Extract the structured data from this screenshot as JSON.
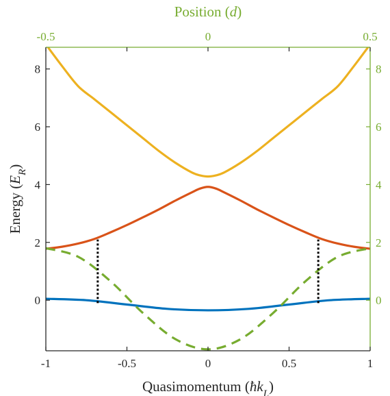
{
  "chart_data": {
    "type": "line",
    "xlabel": {
      "prefix": "Quasimomentum (",
      "math": "ħk",
      "sub": "L",
      "suffix": ")"
    },
    "ylabel": {
      "prefix": "Energy (",
      "math": "E",
      "sub": "R",
      "suffix": ")"
    },
    "x2label": {
      "prefix": "Position (",
      "math": "d",
      "suffix": ")"
    },
    "xlim": [
      -1,
      1
    ],
    "ylim": [
      -1.75,
      8.75
    ],
    "x2lim": [
      -0.5,
      0.5
    ],
    "xticks": [
      -1,
      -0.5,
      0,
      0.5,
      1
    ],
    "xtick_labels": [
      "-1",
      "-0.5",
      "0",
      "0.5",
      "1"
    ],
    "yticks": [
      0,
      2,
      4,
      6,
      8
    ],
    "ytick_labels": [
      "0",
      "2",
      "4",
      "6",
      "8"
    ],
    "x2ticks": [
      -0.5,
      0,
      0.5
    ],
    "x2tick_labels": [
      "-0.5",
      "0",
      "0.5"
    ],
    "y2ticks": [
      0,
      2,
      4,
      6,
      8
    ],
    "y2tick_labels": [
      "0",
      "2",
      "4",
      "6",
      "8"
    ],
    "grid": false,
    "series": [
      {
        "key": "band-0",
        "color": "#0072bd",
        "style": "solid",
        "x": [
          -1,
          -0.75,
          -0.5,
          -0.25,
          0,
          0.25,
          0.5,
          0.75,
          1
        ],
        "y": [
          0.05,
          0.0,
          -0.15,
          -0.3,
          -0.35,
          -0.3,
          -0.15,
          0.0,
          0.05
        ]
      },
      {
        "key": "band-1",
        "color": "#d95319",
        "style": "solid",
        "x": [
          -1,
          -0.9,
          -0.8,
          -0.7,
          -0.6,
          -0.5,
          -0.4,
          -0.3,
          -0.2,
          -0.1,
          -0.05,
          0,
          0.05,
          0.1,
          0.2,
          0.3,
          0.4,
          0.5,
          0.6,
          0.7,
          0.8,
          0.9,
          1
        ],
        "y": [
          1.78,
          1.85,
          1.96,
          2.12,
          2.35,
          2.6,
          2.87,
          3.15,
          3.45,
          3.73,
          3.86,
          3.92,
          3.86,
          3.73,
          3.45,
          3.15,
          2.87,
          2.6,
          2.35,
          2.12,
          1.96,
          1.85,
          1.78
        ]
      },
      {
        "key": "band-2",
        "color": "#edb120",
        "style": "solid",
        "x": [
          -1,
          -0.9,
          -0.8,
          -0.7,
          -0.6,
          -0.5,
          -0.4,
          -0.3,
          -0.2,
          -0.1,
          -0.05,
          0,
          0.05,
          0.1,
          0.2,
          0.3,
          0.4,
          0.5,
          0.6,
          0.7,
          0.8,
          0.9,
          1
        ],
        "y": [
          8.85,
          8.1,
          7.4,
          6.95,
          6.5,
          6.05,
          5.6,
          5.15,
          4.75,
          4.42,
          4.32,
          4.28,
          4.32,
          4.42,
          4.75,
          5.15,
          5.6,
          6.05,
          6.5,
          6.95,
          7.4,
          8.1,
          8.85
        ]
      },
      {
        "key": "lattice-potential",
        "color": "#77ac30",
        "style": "dashed",
        "axis": "secondary",
        "x": [
          -0.5,
          -0.4,
          -0.3,
          -0.2,
          -0.1,
          0,
          0.1,
          0.2,
          0.3,
          0.4,
          0.5
        ],
        "y": [
          1.8,
          1.5,
          0.65,
          -0.45,
          -1.35,
          -1.7,
          -1.35,
          -0.45,
          0.65,
          1.5,
          1.8
        ]
      }
    ],
    "annotations": [
      {
        "key": "transition-left",
        "type": "vertical-dotted",
        "color": "#000000",
        "x": -0.68,
        "y_from": -0.1,
        "y_to": 2.1
      },
      {
        "key": "transition-right",
        "type": "vertical-dotted",
        "color": "#000000",
        "x": 0.68,
        "y_from": -0.1,
        "y_to": 2.1
      }
    ],
    "colors": {
      "axis": "#262626",
      "secondary_axis": "#77ac30"
    }
  }
}
